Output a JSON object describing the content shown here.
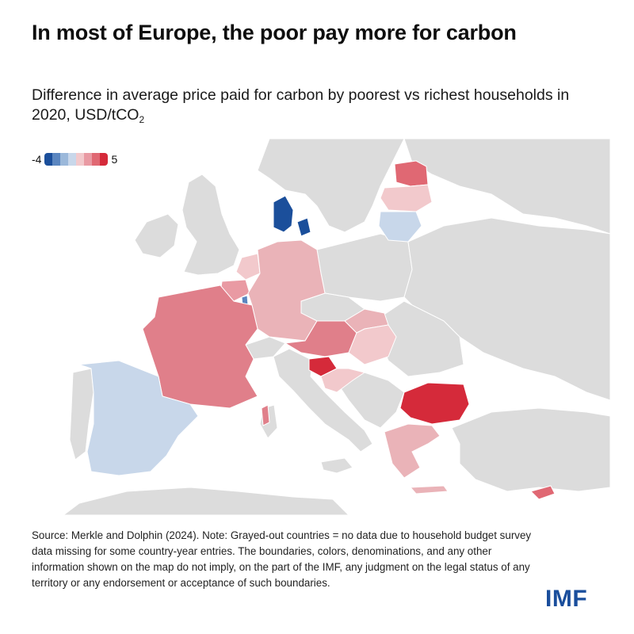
{
  "header": {
    "title": "In most of Europe, the poor pay more for carbon",
    "subtitle_main": "Difference in average price paid for carbon by poorest vs richest households in 2020, USD/tCO",
    "subtitle_sub": "2"
  },
  "legend": {
    "min_label": "-4",
    "max_label": "5",
    "colors": [
      "#1b4f9b",
      "#5b86c0",
      "#9bb8da",
      "#c8d7ea",
      "#f2c9cc",
      "#e99aa3",
      "#e06873",
      "#d52a3a"
    ]
  },
  "map": {
    "no_data_color": "#dcdcdc",
    "sea_color": "#ffffff",
    "regions": [
      {
        "name": "Estonia",
        "color": "#e06873"
      },
      {
        "name": "Latvia",
        "color": "#f2c9cc"
      },
      {
        "name": "Lithuania",
        "color": "#c8d7ea"
      },
      {
        "name": "Denmark",
        "color": "#1b4f9b"
      },
      {
        "name": "Netherlands",
        "color": "#f2c9cc"
      },
      {
        "name": "Belgium",
        "color": "#e99aa3"
      },
      {
        "name": "Luxembourg",
        "color": "#5b86c0"
      },
      {
        "name": "Germany",
        "color": "#eab3b8"
      },
      {
        "name": "France",
        "color": "#e07f8a"
      },
      {
        "name": "Spain",
        "color": "#c8d7ea"
      },
      {
        "name": "Austria",
        "color": "#e07f8a"
      },
      {
        "name": "Slovenia",
        "color": "#d52a3a"
      },
      {
        "name": "Hungary",
        "color": "#f2c9cc"
      },
      {
        "name": "Slovakia",
        "color": "#eab3b8"
      },
      {
        "name": "Croatia",
        "color": "#f2c9cc"
      },
      {
        "name": "Bulgaria",
        "color": "#d52a3a"
      },
      {
        "name": "Greece",
        "color": "#eab3b8"
      },
      {
        "name": "Cyprus",
        "color": "#e06873"
      },
      {
        "name": "Corsica",
        "color": "#e07f8a"
      }
    ]
  },
  "footer": {
    "source": "Source: Merkle and Dolphin (2024). Note: Grayed-out countries = no data due to household budget survey data missing for some country-year entries. The boundaries, colors, denominations, and any other information shown on the map do not imply, on the part of the IMF, any judgment on the legal status of any territory or any endorsement or acceptance of such boundaries.",
    "logo": "IMF"
  }
}
